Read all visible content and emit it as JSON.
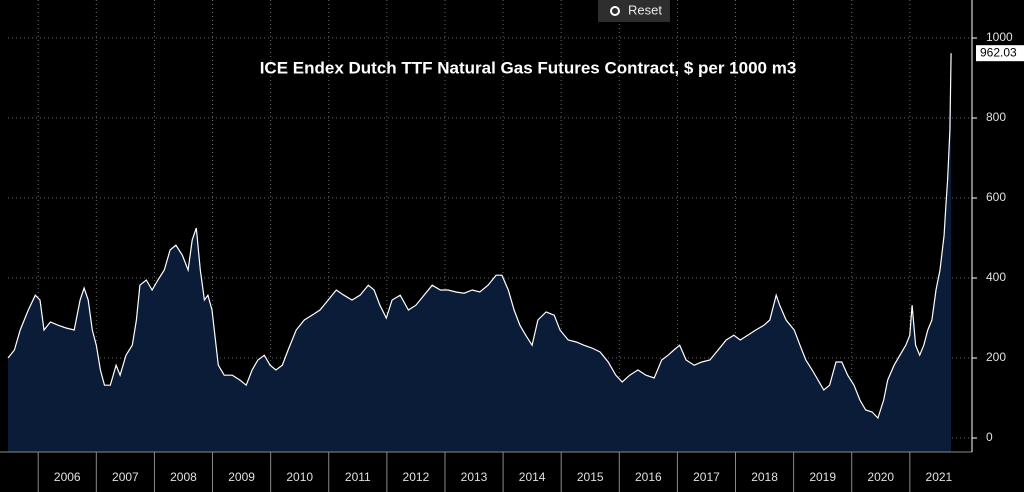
{
  "reset_button": "Reset",
  "chart_data": {
    "type": "area",
    "title": "ICE Endex Dutch TTF Natural Gas Futures Contract, $ per 1000 m3",
    "xlim": [
      2005.48,
      2022.07
    ],
    "xticks": [
      2006,
      2007,
      2008,
      2009,
      2010,
      2011,
      2012,
      2013,
      2014,
      2015,
      2016,
      2017,
      2018,
      2019,
      2020,
      2021
    ],
    "ylim": [
      -35,
      1095
    ],
    "yticks": [
      0,
      200,
      400,
      600,
      800,
      1000
    ],
    "grid": true,
    "x": [
      2005.48,
      2005.59,
      2005.69,
      2005.83,
      2005.95,
      2006.03,
      2006.1,
      2006.21,
      2006.34,
      2006.48,
      2006.62,
      2006.72,
      2006.79,
      2006.86,
      2006.93,
      2007.0,
      2007.07,
      2007.14,
      2007.24,
      2007.34,
      2007.41,
      2007.51,
      2007.62,
      2007.69,
      2007.75,
      2007.86,
      2007.96,
      2008.06,
      2008.17,
      2008.27,
      2008.37,
      2008.48,
      2008.58,
      2008.65,
      2008.72,
      2008.79,
      2008.86,
      2008.92,
      2008.99,
      2009.1,
      2009.2,
      2009.34,
      2009.47,
      2009.58,
      2009.68,
      2009.78,
      2009.89,
      2009.99,
      2010.09,
      2010.2,
      2010.3,
      2010.44,
      2010.58,
      2010.71,
      2010.85,
      2010.99,
      2011.13,
      2011.26,
      2011.4,
      2011.54,
      2011.68,
      2011.78,
      2011.88,
      2011.99,
      2012.09,
      2012.23,
      2012.37,
      2012.5,
      2012.64,
      2012.78,
      2012.92,
      2013.05,
      2013.19,
      2013.33,
      2013.47,
      2013.6,
      2013.74,
      2013.88,
      2013.98,
      2014.09,
      2014.19,
      2014.29,
      2014.39,
      2014.5,
      2014.6,
      2014.74,
      2014.88,
      2014.98,
      2015.12,
      2015.26,
      2015.39,
      2015.53,
      2015.67,
      2015.81,
      2015.94,
      2016.05,
      2016.18,
      2016.32,
      2016.46,
      2016.6,
      2016.73,
      2016.84,
      2016.94,
      2017.04,
      2017.15,
      2017.29,
      2017.42,
      2017.56,
      2017.7,
      2017.84,
      2017.97,
      2018.08,
      2018.21,
      2018.35,
      2018.49,
      2018.59,
      2018.7,
      2018.76,
      2018.87,
      2019.01,
      2019.11,
      2019.21,
      2019.32,
      2019.42,
      2019.52,
      2019.62,
      2019.73,
      2019.83,
      2019.93,
      2020.04,
      2020.14,
      2020.24,
      2020.35,
      2020.45,
      2020.55,
      2020.62,
      2020.73,
      2020.83,
      2020.93,
      2021.0,
      2021.04,
      2021.1,
      2021.17,
      2021.24,
      2021.31,
      2021.38,
      2021.45,
      2021.52,
      2021.59,
      2021.62,
      2021.65,
      2021.69,
      2021.71
    ],
    "series": [
      {
        "color": "#ffffff",
        "fill": "#0b1c38",
        "values": [
          200,
          220,
          270,
          320,
          357,
          345,
          270,
          290,
          282,
          275,
          270,
          345,
          375,
          345,
          270,
          232,
          170,
          132,
          132,
          182,
          157,
          207,
          232,
          295,
          382,
          395,
          370,
          395,
          420,
          470,
          482,
          457,
          420,
          495,
          525,
          420,
          345,
          357,
          320,
          182,
          157,
          157,
          145,
          132,
          170,
          195,
          207,
          182,
          170,
          182,
          220,
          270,
          295,
          307,
          320,
          345,
          370,
          357,
          345,
          357,
          382,
          370,
          332,
          300,
          345,
          357,
          320,
          332,
          357,
          382,
          370,
          370,
          365,
          362,
          370,
          365,
          382,
          407,
          407,
          370,
          320,
          282,
          257,
          232,
          295,
          315,
          307,
          270,
          245,
          240,
          232,
          225,
          215,
          190,
          157,
          140,
          157,
          170,
          157,
          150,
          195,
          207,
          220,
          232,
          195,
          182,
          190,
          195,
          220,
          245,
          257,
          245,
          257,
          270,
          282,
          295,
          357,
          332,
          295,
          270,
          232,
          195,
          170,
          145,
          120,
          132,
          190,
          190,
          157,
          132,
          95,
          70,
          65,
          50,
          95,
          145,
          182,
          207,
          232,
          257,
          332,
          232,
          207,
          232,
          270,
          295,
          370,
          420,
          507,
          582,
          645,
          770,
          962.03
        ]
      }
    ]
  }
}
